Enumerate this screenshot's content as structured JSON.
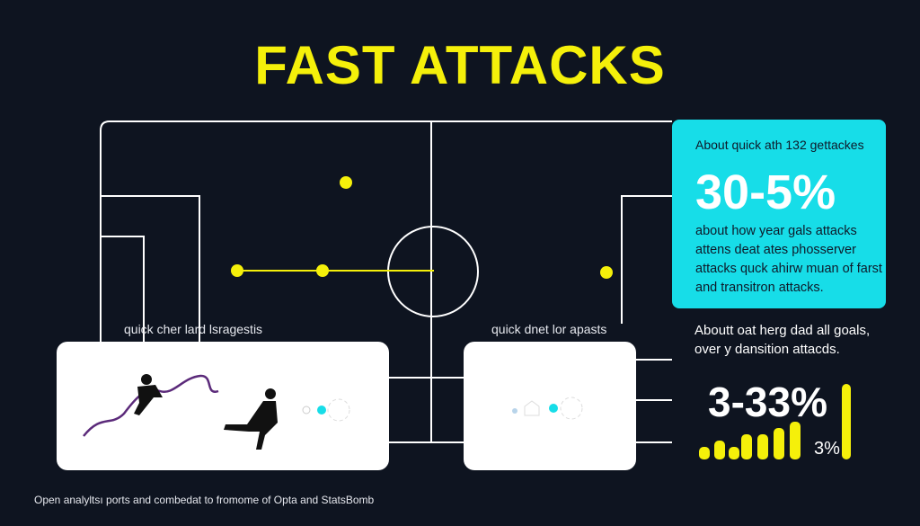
{
  "title": "FAST ATTACKS",
  "colors": {
    "background": "#0e1420",
    "accent_yellow": "#f5f00a",
    "accent_cyan": "#17dde8",
    "pitch_lines": "#ffffff"
  },
  "pitch": {
    "captions": [
      "quick cher lard lsragestis",
      "quick dnet lor apasts"
    ]
  },
  "stat_box": {
    "intro": "About quick ath 132 gettackes",
    "value": "30-5%",
    "description": "about how year gals attacks attens deat ates phosserver attacks quck ahirw muan of farst and transitron attacks."
  },
  "note": "Aboutt oat herg dad all goals, over y dansition attacds.",
  "stat2": {
    "value": "3-33%",
    "small_value": "3%",
    "bars": [
      2,
      3,
      2,
      4,
      4,
      5,
      6,
      12
    ]
  },
  "footer": "Open analyltsı ports and combedat to fromome of Opta and StatsBomb"
}
